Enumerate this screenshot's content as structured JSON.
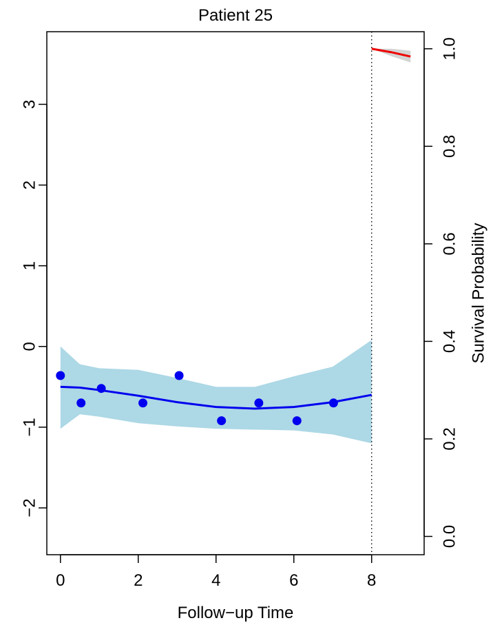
{
  "chart_data": {
    "type": "line",
    "title": "Patient 25",
    "xlabel": "Follow−up Time",
    "ylabel": "",
    "y2label": "Survival Probability",
    "xlim": [
      -0.35,
      9.35
    ],
    "ylim": [
      -2.58,
      3.9
    ],
    "y2lim": [
      -0.0375,
      1.035
    ],
    "x_ticks": [
      0,
      2,
      4,
      6,
      8
    ],
    "x_tick_labels": [
      "0",
      "2",
      "4",
      "6",
      "8"
    ],
    "y_ticks": [
      -2,
      -1,
      0,
      1,
      2,
      3
    ],
    "y_tick_labels": [
      "−2",
      "−1",
      "0",
      "1",
      "2",
      "3"
    ],
    "y2_ticks": [
      0.0,
      0.2,
      0.4,
      0.6,
      0.8,
      1.0
    ],
    "y2_tick_labels": [
      "0.0",
      "0.2",
      "0.4",
      "0.6",
      "0.8",
      "1.0"
    ],
    "observed": {
      "x": [
        0.0,
        0.53,
        1.05,
        2.12,
        3.05,
        4.14,
        5.1,
        6.08,
        7.02
      ],
      "y": [
        -0.36,
        -0.7,
        -0.52,
        -0.7,
        -0.36,
        -0.92,
        -0.7,
        -0.92,
        -0.7
      ]
    },
    "fitted": {
      "x": [
        0,
        0.5,
        1,
        2,
        3,
        4,
        5,
        6,
        7,
        8
      ],
      "y": [
        -0.5,
        -0.51,
        -0.54,
        -0.61,
        -0.69,
        -0.75,
        -0.77,
        -0.75,
        -0.69,
        -0.6
      ]
    },
    "band": {
      "x": [
        0,
        0.5,
        1,
        2,
        3,
        4,
        5,
        6,
        7,
        8
      ],
      "lower": [
        -1.02,
        -0.84,
        -0.87,
        -0.95,
        -0.99,
        -1.02,
        -1.03,
        -1.04,
        -1.09,
        -1.2
      ],
      "upper": [
        0.0,
        -0.22,
        -0.27,
        -0.29,
        -0.39,
        -0.5,
        -0.5,
        -0.37,
        -0.25,
        0.08
      ]
    },
    "survival": {
      "x": [
        8,
        8.5,
        9
      ],
      "y": [
        1.0,
        0.993,
        0.984
      ],
      "lower": [
        1.0,
        0.985,
        0.972
      ],
      "upper": [
        1.0,
        1.0,
        0.996
      ]
    },
    "vline_x": 8,
    "colors": {
      "band": "#ADD8E6",
      "fitted": "#0000EE",
      "points": "#0000EE",
      "survival": "#EE0000",
      "survival_band": "#D3D3D3",
      "vline": "#000000"
    }
  }
}
